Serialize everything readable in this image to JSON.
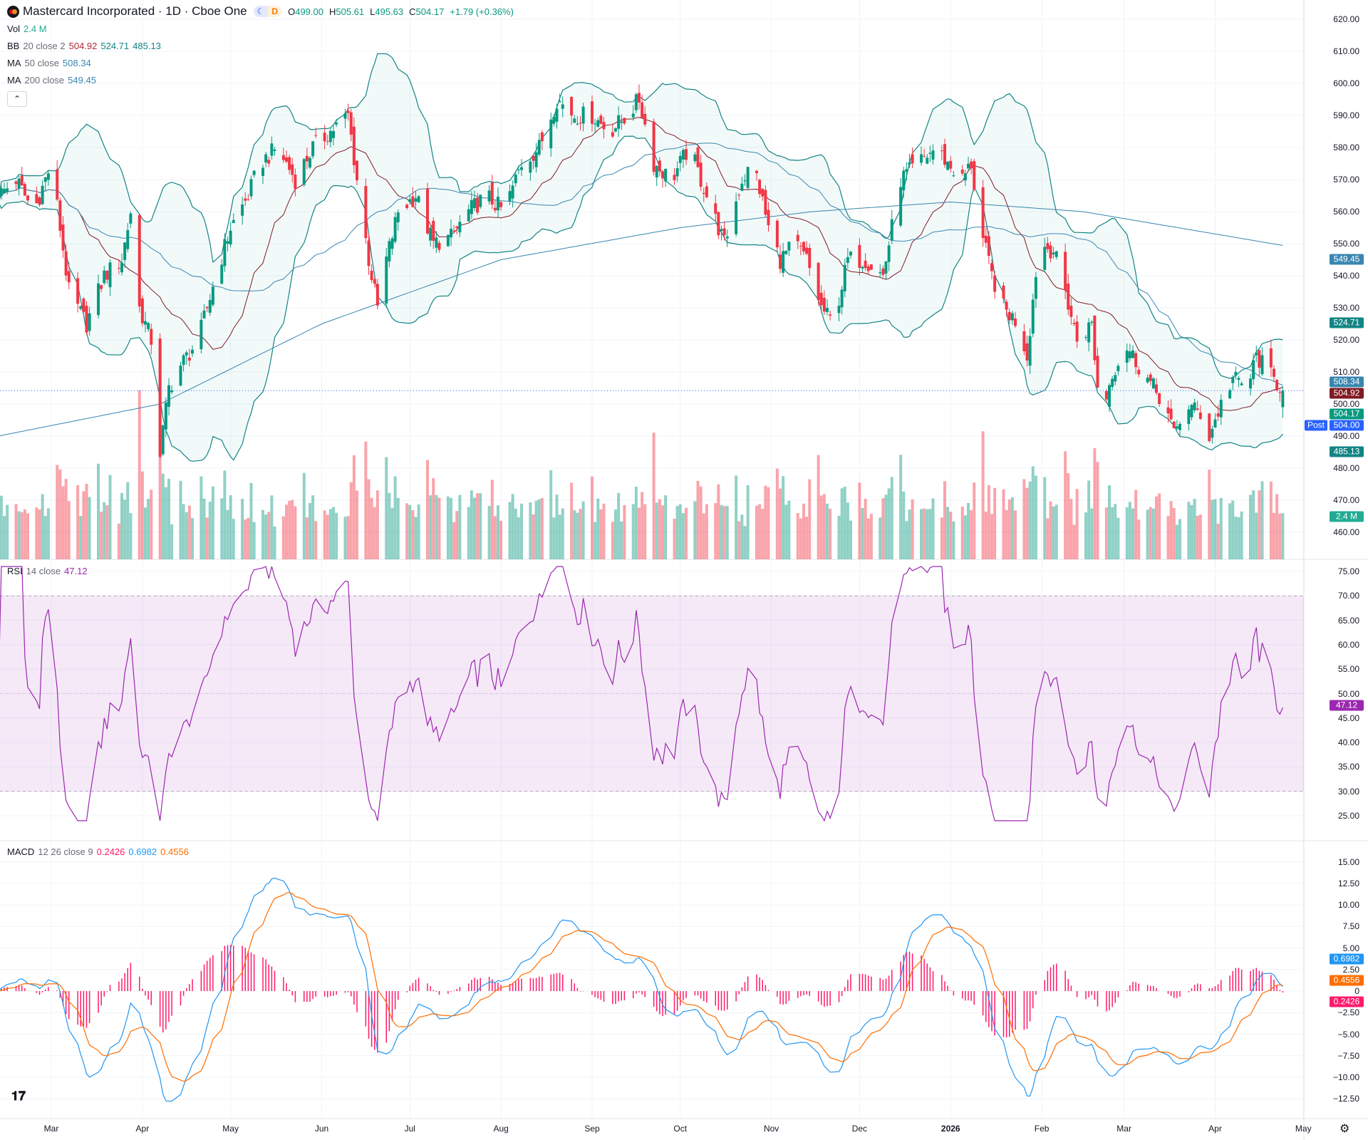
{
  "header": {
    "symbol_title": "Mastercard Incorporated · 1D · Cboe One",
    "session_badges": {
      "moon": "☾",
      "d": "D"
    },
    "ohlc": {
      "o_label": "O",
      "o": "499.00",
      "h_label": "H",
      "h": "505.61",
      "l_label": "L",
      "l": "495.63",
      "c_label": "C",
      "c": "504.17",
      "change": "+1.79 (+0.36%)"
    },
    "collapse_icon": "chevron-up"
  },
  "legends": {
    "vol": {
      "name": "Vol",
      "value": "2.4 M"
    },
    "bb": {
      "name": "BB",
      "params": "20 close 2",
      "basis": "504.92",
      "upper": "524.71",
      "lower": "485.13"
    },
    "ma50": {
      "name": "MA",
      "params": "50 close",
      "value": "508.34"
    },
    "ma200": {
      "name": "MA",
      "params": "200 close",
      "value": "549.45"
    },
    "rsi": {
      "name": "RSI",
      "params": "14 close",
      "value": "47.12"
    },
    "macd": {
      "name": "MACD",
      "params": "12 26 close 9",
      "hist": "0.2426",
      "macd": "0.6982",
      "signal": "0.4556"
    }
  },
  "price_axis": {
    "ticks": [
      "620.00",
      "610.00",
      "600.00",
      "590.00",
      "580.00",
      "570.00",
      "560.00",
      "550.00",
      "540.00",
      "530.00",
      "520.00",
      "510.00",
      "500.00",
      "490.00",
      "480.00",
      "470.00",
      "460.00"
    ],
    "badges": [
      {
        "value": "549.45",
        "color": "#3a86b0"
      },
      {
        "value": "524.71",
        "color": "#138484"
      },
      {
        "value": "508.34",
        "color": "#3a86b0"
      },
      {
        "value": "504.92",
        "color": "#801922"
      },
      {
        "value": "504.17",
        "color": "#089981"
      },
      {
        "value": "485.13",
        "color": "#138484"
      }
    ],
    "post_label": "Post",
    "post_value": "504.00",
    "volume_badge": "2.4 M"
  },
  "rsi_axis": {
    "ticks": [
      "75.00",
      "70.00",
      "65.00",
      "60.00",
      "55.00",
      "50.00",
      "45.00",
      "40.00",
      "35.00",
      "30.00",
      "25.00"
    ],
    "badge": "47.12"
  },
  "macd_axis": {
    "ticks": [
      "15.00",
      "12.50",
      "10.00",
      "7.50",
      "5.00",
      "2.50",
      "0",
      "−2.50",
      "−5.00",
      "−7.50",
      "−10.00",
      "−12.50"
    ],
    "badges": [
      {
        "value": "0.6982",
        "color": "#2196f3"
      },
      {
        "value": "0.4556",
        "color": "#ff6d00"
      },
      {
        "value": "0.2426",
        "color": "#ff1a6b"
      }
    ]
  },
  "time_axis": {
    "labels": [
      {
        "text": "Mar",
        "date": "2025-03-01"
      },
      {
        "text": "Apr",
        "date": "2025-04-01"
      },
      {
        "text": "May",
        "date": "2025-05-01"
      },
      {
        "text": "Jun",
        "date": "2025-06-01"
      },
      {
        "text": "Jul",
        "date": "2025-07-01"
      },
      {
        "text": "Aug",
        "date": "2025-08-01"
      },
      {
        "text": "Sep",
        "date": "2025-09-01"
      },
      {
        "text": "Oct",
        "date": "2025-10-01"
      },
      {
        "text": "Nov",
        "date": "2025-11-01"
      },
      {
        "text": "Dec",
        "date": "2025-12-01"
      },
      {
        "text": "2026",
        "date": "2026-01-01",
        "bold": true
      },
      {
        "text": "Feb",
        "date": "2026-02-01"
      },
      {
        "text": "Mar",
        "date": "2026-03-01"
      },
      {
        "text": "Apr",
        "date": "2026-04-01"
      },
      {
        "text": "May",
        "date": "2026-05-01"
      }
    ]
  },
  "colors": {
    "up": "#089981",
    "down": "#f23645",
    "bb": "#138484",
    "bb_basis": "#801922",
    "ma": "#3a86b0",
    "rsi": "#9c27b0",
    "macd": "#2196f3",
    "signal": "#ff6d00",
    "hist": "#ff1a6b",
    "last_price_line": "#2962ff"
  },
  "chart_data": {
    "type": "candlestick",
    "interval": "1D",
    "ylim": [
      460,
      620
    ],
    "last_bar": {
      "open": 499.0,
      "high": 505.61,
      "low": 495.63,
      "close": 504.17,
      "volume": "2.4M"
    },
    "close_path": [
      [
        "2025-02-11",
        565
      ],
      [
        "2025-02-17",
        570
      ],
      [
        "2025-02-23",
        560
      ],
      [
        "2025-03-01",
        575
      ],
      [
        "2025-03-07",
        535
      ],
      [
        "2025-03-13",
        525
      ],
      [
        "2025-03-19",
        540
      ],
      [
        "2025-03-25",
        545
      ],
      [
        "2025-03-28",
        560
      ],
      [
        "2025-03-31",
        530
      ],
      [
        "2025-04-04",
        520
      ],
      [
        "2025-04-07",
        485
      ],
      [
        "2025-04-10",
        505
      ],
      [
        "2025-04-14",
        512
      ],
      [
        "2025-04-20",
        520
      ],
      [
        "2025-04-26",
        540
      ],
      [
        "2025-05-01",
        555
      ],
      [
        "2025-05-07",
        565
      ],
      [
        "2025-05-11",
        575
      ],
      [
        "2025-05-17",
        580
      ],
      [
        "2025-05-23",
        570
      ],
      [
        "2025-05-29",
        580
      ],
      [
        "2025-06-04",
        585
      ],
      [
        "2025-06-10",
        590
      ],
      [
        "2025-06-13",
        570
      ],
      [
        "2025-06-17",
        545
      ],
      [
        "2025-06-20",
        530
      ],
      [
        "2025-06-23",
        545
      ],
      [
        "2025-06-27",
        560
      ],
      [
        "2025-07-03",
        565
      ],
      [
        "2025-07-09",
        550
      ],
      [
        "2025-07-15",
        552
      ],
      [
        "2025-07-21",
        560
      ],
      [
        "2025-07-27",
        565
      ],
      [
        "2025-08-02",
        560
      ],
      [
        "2025-08-08",
        575
      ],
      [
        "2025-08-14",
        580
      ],
      [
        "2025-08-20",
        595
      ],
      [
        "2025-08-26",
        590
      ],
      [
        "2025-09-01",
        590
      ],
      [
        "2025-09-07",
        585
      ],
      [
        "2025-09-13",
        590
      ],
      [
        "2025-09-17",
        595
      ],
      [
        "2025-09-22",
        575
      ],
      [
        "2025-09-28",
        570
      ],
      [
        "2025-10-04",
        580
      ],
      [
        "2025-10-10",
        565
      ],
      [
        "2025-10-16",
        550
      ],
      [
        "2025-10-22",
        570
      ],
      [
        "2025-10-26",
        575
      ],
      [
        "2025-10-31",
        555
      ],
      [
        "2025-11-04",
        545
      ],
      [
        "2025-11-09",
        550
      ],
      [
        "2025-11-13",
        545
      ],
      [
        "2025-11-18",
        530
      ],
      [
        "2025-11-22",
        525
      ],
      [
        "2025-11-27",
        545
      ],
      [
        "2025-12-03",
        545
      ],
      [
        "2025-12-09",
        540
      ],
      [
        "2025-12-15",
        570
      ],
      [
        "2025-12-21",
        575
      ],
      [
        "2025-12-27",
        580
      ],
      [
        "2025-12-31",
        575
      ],
      [
        "2026-01-05",
        570
      ],
      [
        "2026-01-08",
        575
      ],
      [
        "2026-01-11",
        555
      ],
      [
        "2026-01-15",
        540
      ],
      [
        "2026-01-19",
        530
      ],
      [
        "2026-01-24",
        525
      ],
      [
        "2026-01-27",
        515
      ],
      [
        "2026-01-31",
        550
      ],
      [
        "2026-02-05",
        548
      ],
      [
        "2026-02-09",
        535
      ],
      [
        "2026-02-13",
        520
      ],
      [
        "2026-02-18",
        525
      ],
      [
        "2026-02-21",
        495
      ],
      [
        "2026-02-25",
        510
      ],
      [
        "2026-03-02",
        518
      ],
      [
        "2026-03-06",
        512
      ],
      [
        "2026-03-11",
        505
      ],
      [
        "2026-03-15",
        500
      ],
      [
        "2026-03-18",
        490
      ],
      [
        "2026-03-22",
        500
      ],
      [
        "2026-03-27",
        497
      ],
      [
        "2026-03-30",
        490
      ],
      [
        "2026-04-03",
        500
      ],
      [
        "2026-04-07",
        508
      ],
      [
        "2026-04-12",
        505
      ],
      [
        "2026-04-15",
        515
      ],
      [
        "2026-04-19",
        510
      ],
      [
        "2026-04-24",
        504.17
      ]
    ],
    "ma200_path": [
      [
        "2025-02-11",
        490
      ],
      [
        "2025-04-07",
        500
      ],
      [
        "2025-06-01",
        525
      ],
      [
        "2025-08-01",
        545
      ],
      [
        "2025-10-01",
        555
      ],
      [
        "2025-11-15",
        560
      ],
      [
        "2026-01-01",
        563
      ],
      [
        "2026-02-15",
        560
      ],
      [
        "2026-04-24",
        549.45
      ]
    ],
    "indicators": {
      "rsi": {
        "period": 14,
        "ylim": [
          25,
          75
        ],
        "band": [
          30,
          70
        ]
      },
      "macd": {
        "fast": 12,
        "slow": 26,
        "signal": 9,
        "ylim": [
          -12.5,
          15
        ]
      },
      "bb": {
        "period": 20,
        "mult": 2
      },
      "ma": [
        50,
        200
      ]
    }
  }
}
